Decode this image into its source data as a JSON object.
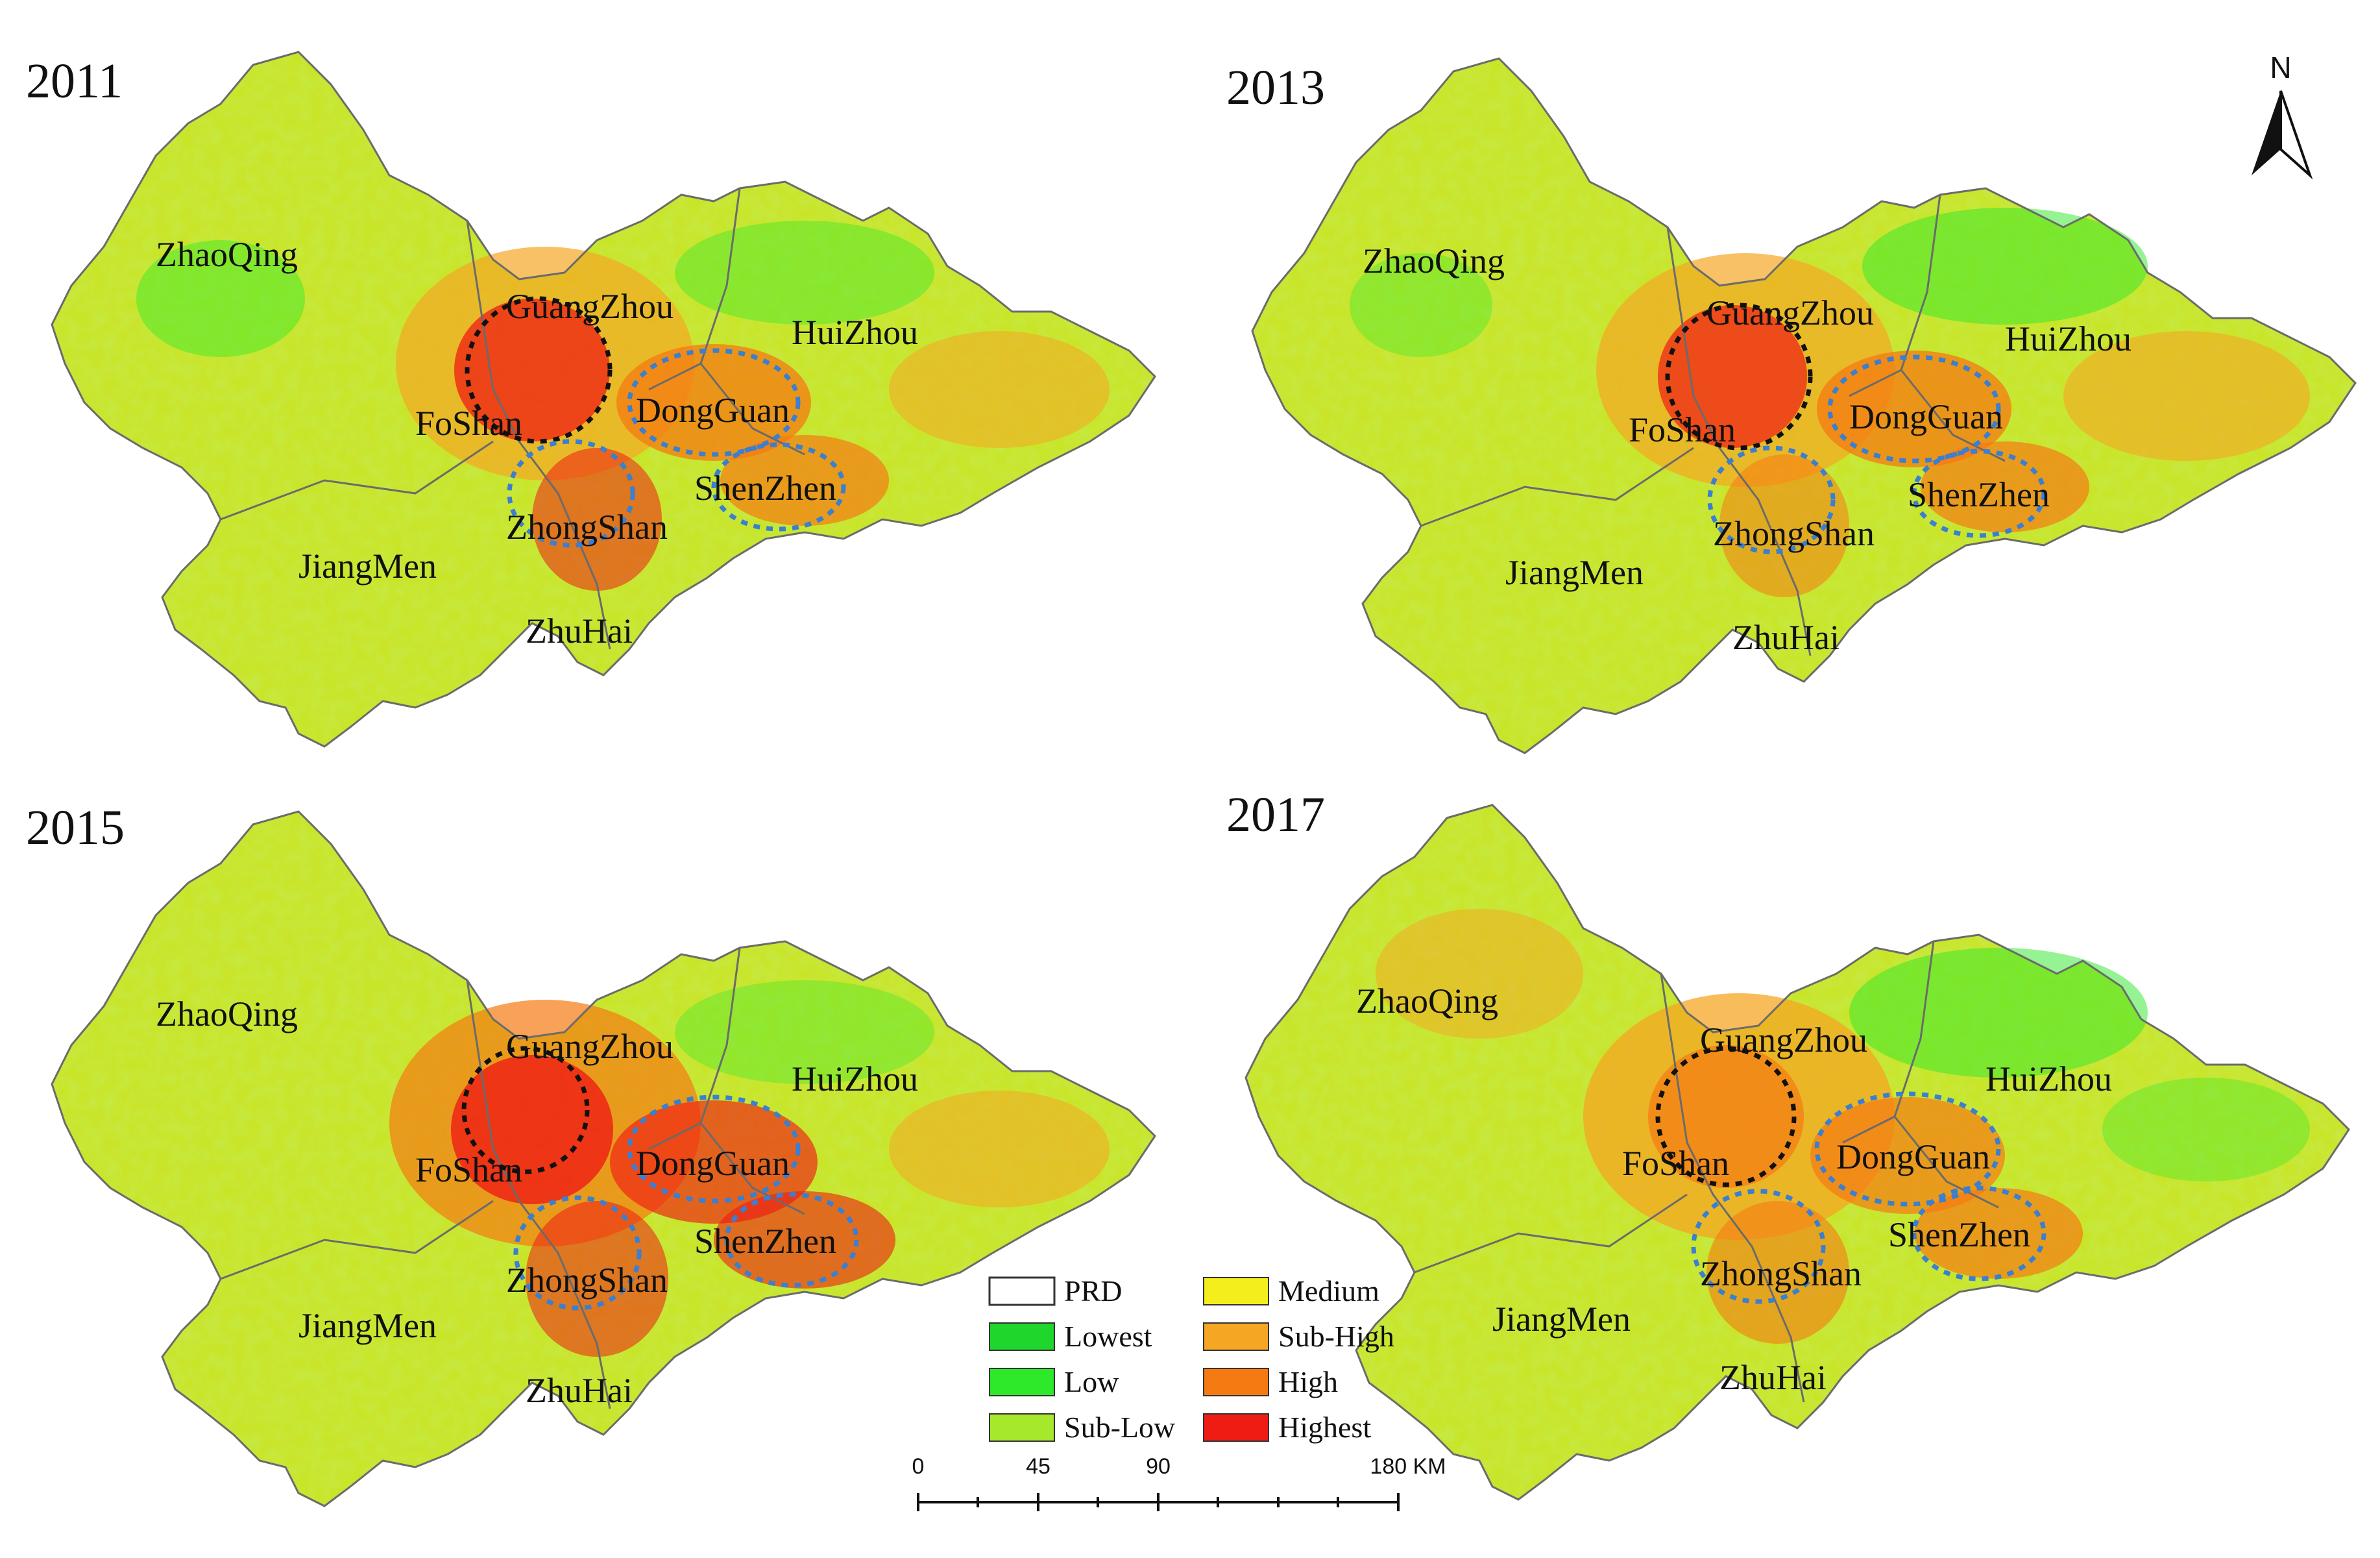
{
  "panels": [
    {
      "year": "2011",
      "cities": {
        "zhaoqing": "ZhaoQing",
        "guangzhou": "GuangZhou",
        "huizhou": "HuiZhou",
        "foshan": "FoShan",
        "dongguan": "DongGuan",
        "shenzhen": "ShenZhen",
        "zhongshan": "ZhongShan",
        "jiangmen": "JiangMen",
        "zhuhai": "ZhuHai"
      }
    },
    {
      "year": "2013",
      "cities": {
        "zhaoqing": "ZhaoQing",
        "guangzhou": "GuangZhou",
        "huizhou": "HuiZhou",
        "foshan": "FoShan",
        "dongguan": "DongGuan",
        "shenzhen": "ShenZhen",
        "zhongshan": "ZhongShan",
        "jiangmen": "JiangMen",
        "zhuhai": "ZhuHai"
      }
    },
    {
      "year": "2015",
      "cities": {
        "zhaoqing": "ZhaoQing",
        "guangzhou": "GuangZhou",
        "huizhou": "HuiZhou",
        "foshan": "FoShan",
        "dongguan": "DongGuan",
        "shenzhen": "ShenZhen",
        "zhongshan": "ZhongShan",
        "jiangmen": "JiangMen",
        "zhuhai": "ZhuHai"
      }
    },
    {
      "year": "2017",
      "cities": {
        "zhaoqing": "ZhaoQing",
        "guangzhou": "GuangZhou",
        "huizhou": "HuiZhou",
        "foshan": "FoShan",
        "dongguan": "DongGuan",
        "shenzhen": "ShenZhen",
        "zhongshan": "ZhongShan",
        "jiangmen": "JiangMen",
        "zhuhai": "ZhuHai"
      }
    }
  ],
  "legend": {
    "items": [
      {
        "label": "PRD",
        "color": "#ffffff"
      },
      {
        "label": "Lowest",
        "color": "#1ed62c"
      },
      {
        "label": "Low",
        "color": "#2ee82a"
      },
      {
        "label": "Sub-Low",
        "color": "#a6e82c"
      },
      {
        "label": "Medium",
        "color": "#f4ee1c"
      },
      {
        "label": "Sub-High",
        "color": "#f5a623"
      },
      {
        "label": "High",
        "color": "#f57a12"
      },
      {
        "label": "Highest",
        "color": "#ef1c14"
      }
    ]
  },
  "scalebar": {
    "ticks": [
      "0",
      "45",
      "90",
      "180 KM"
    ]
  },
  "north_arrow": {
    "label": "N"
  },
  "colors": {
    "hotspot_primary": "#111111",
    "hotspot_secondary": "#3a7fd0",
    "boundary": "#6b6b6b"
  }
}
